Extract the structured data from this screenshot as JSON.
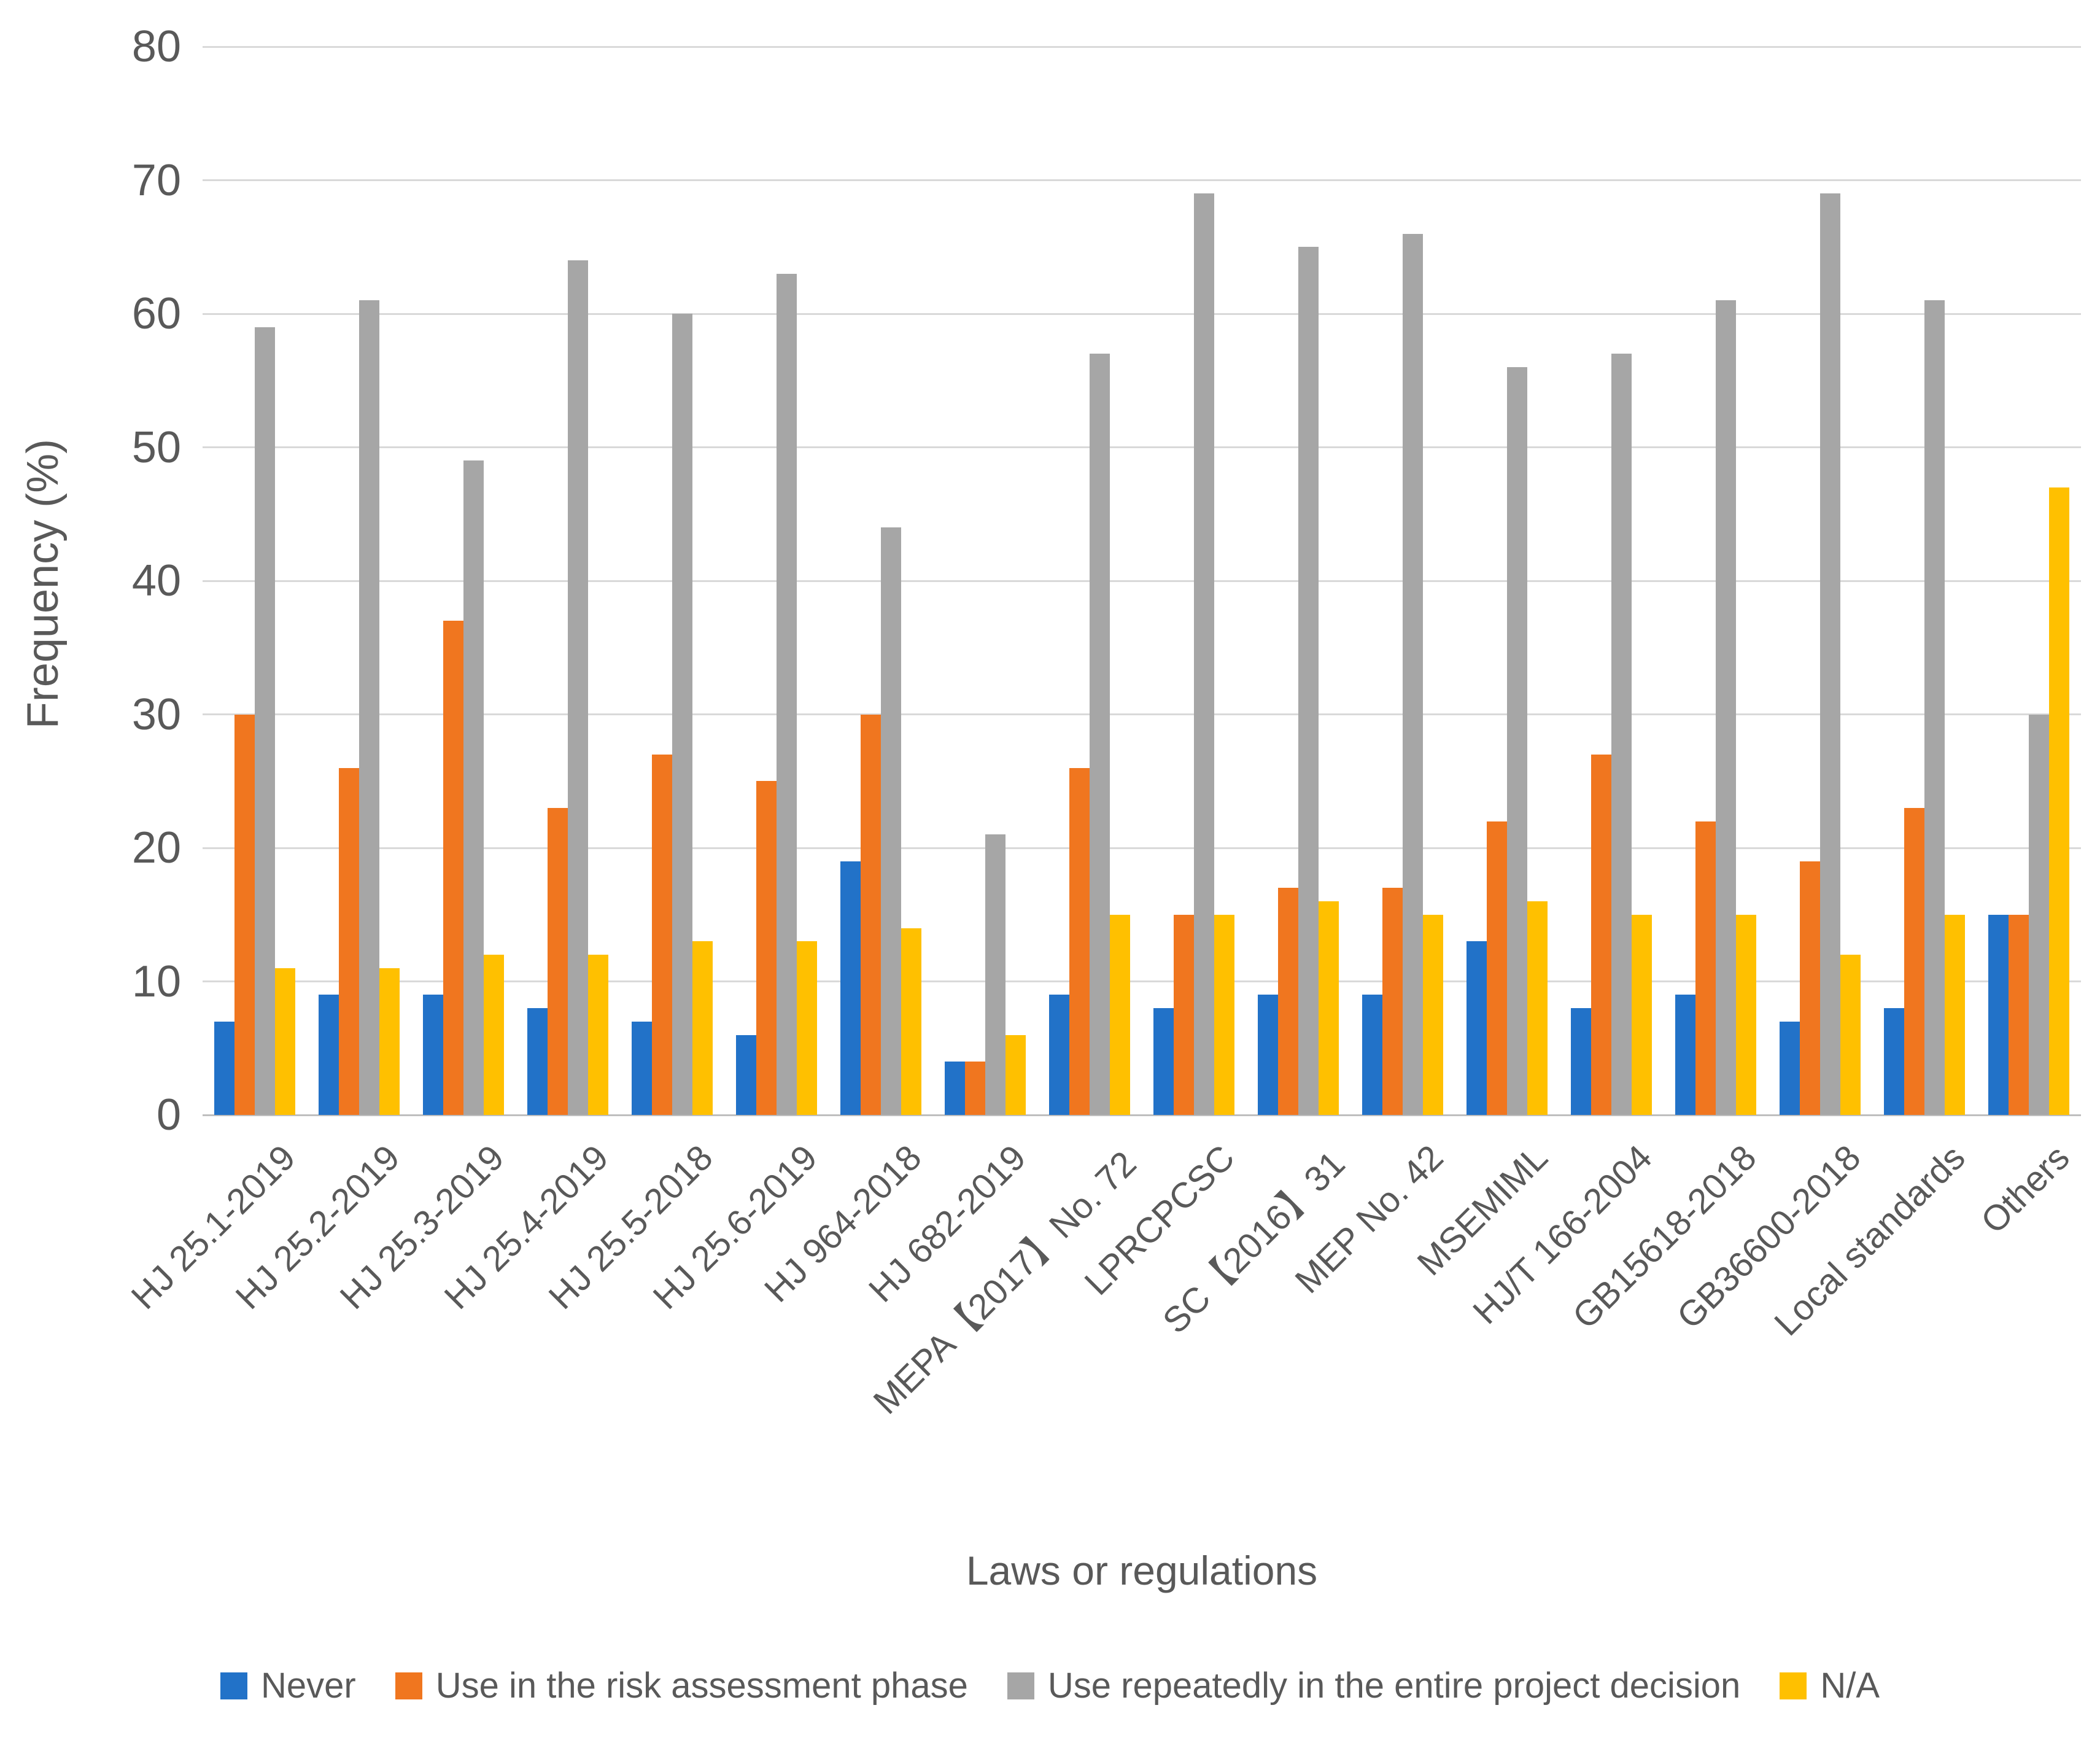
{
  "chart_data": {
    "type": "bar",
    "title": "",
    "xlabel": "Laws or regulations",
    "ylabel": "Frequency (%)",
    "ylim": [
      0,
      80
    ],
    "ytick_step": 10,
    "yticks": [
      0,
      10,
      20,
      30,
      40,
      50,
      60,
      70,
      80
    ],
    "grid": "horizontal",
    "legend_position": "bottom",
    "categories": [
      "HJ 25.1-2019",
      "HJ 25.2-2019",
      "HJ 25.3-2019",
      "HJ 25.4-2019",
      "HJ 25.5-2018",
      "HJ 25.6-2019",
      "HJ 964-2018",
      "HJ 682-2019",
      "MEPA【2017】No. 72",
      "LPRCPCSC",
      "SC【2016】31",
      "MEP No. 42",
      "MSEMIML",
      "HJ/T 166-2004",
      "GB15618-2018",
      "GB36600-2018",
      "Local standards",
      "Others"
    ],
    "series": [
      {
        "name": "Never",
        "color": "#2272c8",
        "values": [
          7,
          9,
          9,
          8,
          7,
          6,
          19,
          4,
          9,
          8,
          9,
          9,
          13,
          8,
          9,
          7,
          8,
          15
        ]
      },
      {
        "name": "Use in the risk assessment phase",
        "color": "#f0761f",
        "values": [
          30,
          26,
          37,
          23,
          27,
          25,
          30,
          4,
          26,
          15,
          17,
          17,
          22,
          27,
          22,
          19,
          23,
          15
        ]
      },
      {
        "name": "Use repeatedly in the entire project decision",
        "color": "#a6a6a6",
        "values": [
          59,
          61,
          49,
          64,
          60,
          63,
          44,
          21,
          57,
          69,
          65,
          66,
          56,
          57,
          61,
          69,
          61,
          30
        ]
      },
      {
        "name": "N/A",
        "color": "#ffc000",
        "values": [
          11,
          11,
          12,
          12,
          13,
          13,
          14,
          6,
          15,
          15,
          16,
          15,
          16,
          15,
          15,
          12,
          15,
          47
        ]
      }
    ]
  },
  "axis_colors": {
    "gridline": "#d9d9d9",
    "axis_line": "#bfbfbf",
    "text": "#595959"
  }
}
